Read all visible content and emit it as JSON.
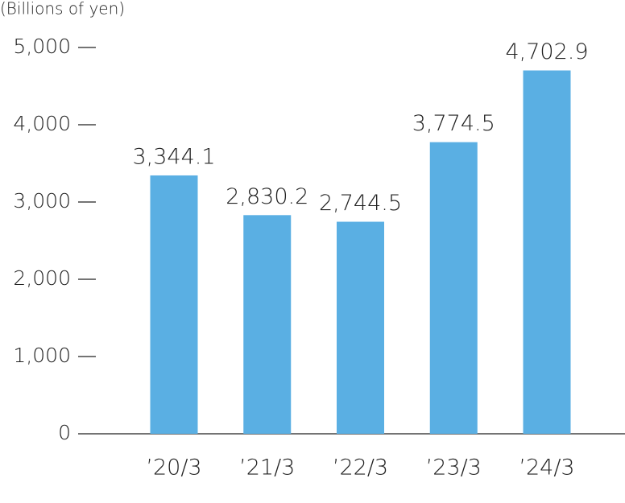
{
  "chart_data": {
    "type": "bar",
    "y_axis_label": "(Billions of yen)",
    "categories": [
      "’20/3",
      "’21/3",
      "’22/3",
      "’23/3",
      "’24/3"
    ],
    "values": [
      3344.1,
      2830.2,
      2744.5,
      3774.5,
      4702.9
    ],
    "value_labels": [
      "3,344.1",
      "2,830.2",
      "2,744.5",
      "3,774.5",
      "4,702.9"
    ],
    "color": "#5aafe3",
    "ylim": [
      0,
      5000
    ],
    "yticks": [
      0,
      {
        "value": 1000,
        "label": "1,000"
      },
      {
        "value": 2000,
        "label": "2,000"
      },
      {
        "value": 3000,
        "label": "3,000"
      },
      {
        "value": 4000,
        "label": "4,000"
      },
      {
        "value": 5000,
        "label": "5,000"
      }
    ],
    "grid": false
  }
}
